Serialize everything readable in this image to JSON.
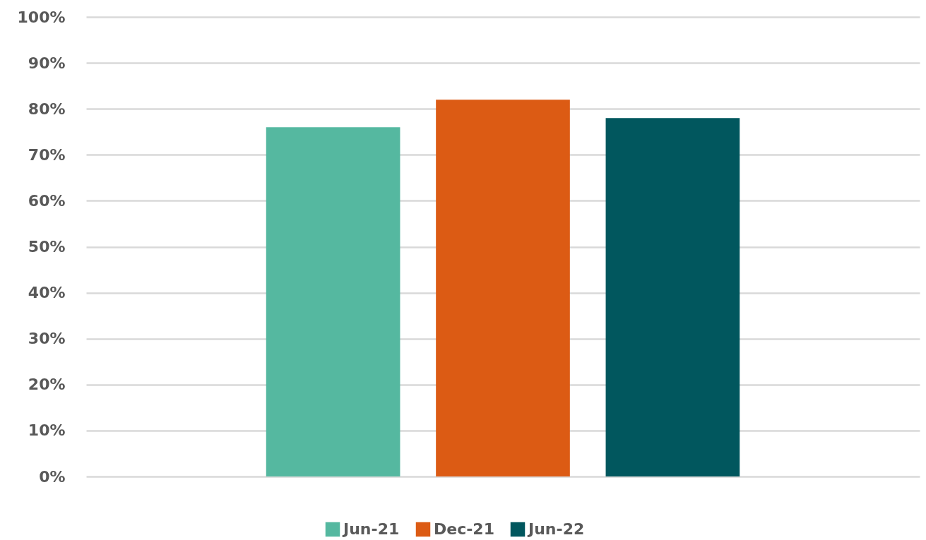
{
  "chart_data": {
    "type": "bar",
    "categories": [
      null
    ],
    "series": [
      {
        "name": "Jun-21",
        "color": "#55b8a0",
        "values": [
          76
        ]
      },
      {
        "name": "Dec-21",
        "color": "#dc5b14",
        "values": [
          82
        ]
      },
      {
        "name": "Jun-22",
        "color": "#01575e",
        "values": [
          78
        ]
      }
    ],
    "ylim": [
      0,
      100
    ],
    "yticks": [
      {
        "value": 0,
        "label": "0%"
      },
      {
        "value": 10,
        "label": "10%"
      },
      {
        "value": 20,
        "label": "20%"
      },
      {
        "value": 30,
        "label": "30%"
      },
      {
        "value": 40,
        "label": "40%"
      },
      {
        "value": 50,
        "label": "50%"
      },
      {
        "value": 60,
        "label": "60%"
      },
      {
        "value": 70,
        "label": "70%"
      },
      {
        "value": 80,
        "label": "80%"
      },
      {
        "value": 90,
        "label": "90%"
      },
      {
        "value": 100,
        "label": "100%"
      }
    ],
    "grid": "y",
    "legend": "bottom"
  }
}
